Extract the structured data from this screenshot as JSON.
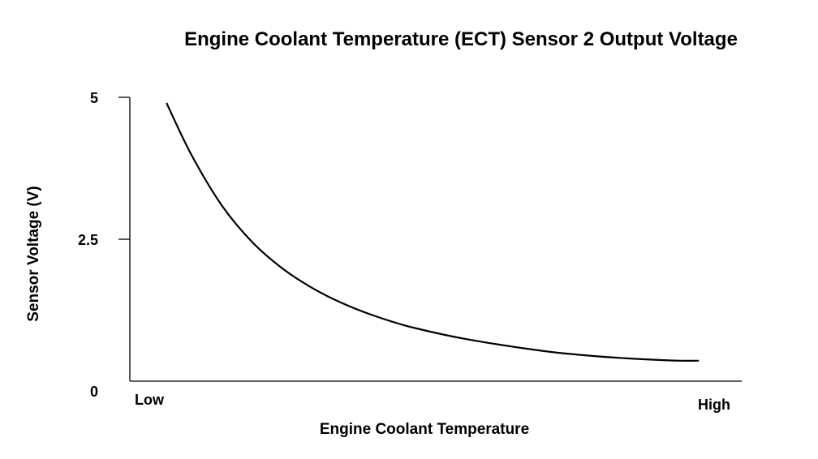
{
  "chart_data": {
    "type": "line",
    "title": "Engine Coolant Temperature (ECT) Sensor 2 Output Voltage",
    "xlabel": "Engine Coolant Temperature",
    "ylabel": "Sensor Voltage (V)",
    "x_tick_labels": [
      "Low",
      "High"
    ],
    "y_ticks": [
      {
        "value": 5,
        "label": "5"
      },
      {
        "value": 2.5,
        "label": "2.5"
      },
      {
        "value": 0,
        "label": "0"
      }
    ],
    "ylim": [
      0,
      5
    ],
    "xlim": [
      0,
      1
    ],
    "grid": false,
    "series": [
      {
        "x": [
          0.06,
          0.1,
          0.15,
          0.2,
          0.25,
          0.3,
          0.35,
          0.4,
          0.45,
          0.5,
          0.55,
          0.6,
          0.65,
          0.7,
          0.75,
          0.8,
          0.85,
          0.9,
          0.93
        ],
        "values": [
          4.9,
          4.0,
          3.1,
          2.45,
          1.98,
          1.63,
          1.36,
          1.15,
          0.98,
          0.85,
          0.74,
          0.65,
          0.57,
          0.5,
          0.45,
          0.41,
          0.38,
          0.36,
          0.36
        ]
      }
    ],
    "colors": {
      "line": "#000000",
      "axis": "#000000",
      "background": "#ffffff"
    }
  }
}
